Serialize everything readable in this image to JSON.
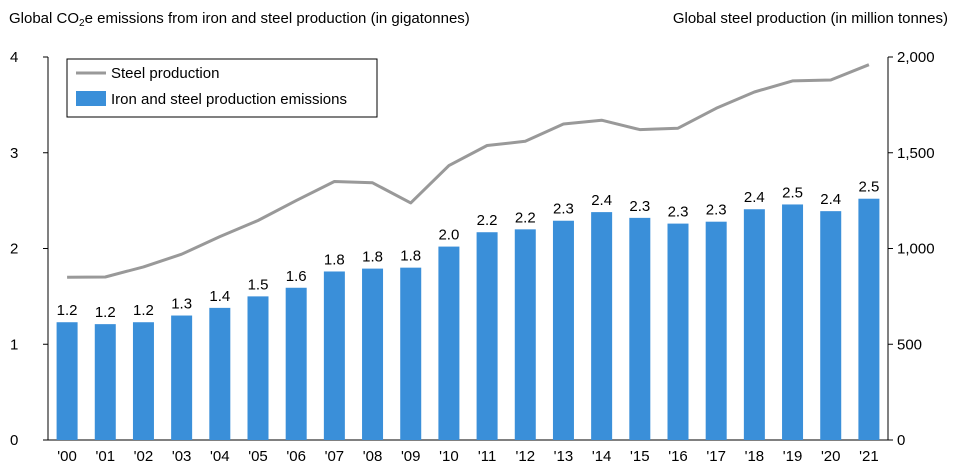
{
  "chart_data": {
    "type": "bar+line",
    "left_axis_title": {
      "pre": "Global CO",
      "sub": "2",
      "post": "e emissions from iron and steel production (in gigatonnes)"
    },
    "right_axis_title": "Global steel production (in million tonnes)",
    "categories": [
      "'00",
      "'01",
      "'02",
      "'03",
      "'04",
      "'05",
      "'06",
      "'07",
      "'08",
      "'09",
      "'10",
      "'11",
      "'12",
      "'13",
      "'14",
      "'15",
      "'16",
      "'17",
      "'18",
      "'19",
      "'20",
      "'21"
    ],
    "series": [
      {
        "name": "Iron and steel production emissions",
        "type": "bar",
        "axis": "left",
        "color": "#3a8fd9",
        "values": [
          1.23,
          1.21,
          1.23,
          1.3,
          1.38,
          1.5,
          1.59,
          1.76,
          1.79,
          1.8,
          2.02,
          2.17,
          2.2,
          2.29,
          2.38,
          2.32,
          2.26,
          2.28,
          2.41,
          2.46,
          2.39,
          2.52
        ],
        "labels": [
          "1.2",
          "1.2",
          "1.2",
          "1.3",
          "1.4",
          "1.5",
          "1.6",
          "1.8",
          "1.8",
          "1.8",
          "2.0",
          "2.2",
          "2.2",
          "2.3",
          "2.4",
          "2.3",
          "2.3",
          "2.3",
          "2.4",
          "2.5",
          "2.4",
          "2.5"
        ]
      },
      {
        "name": "Steel production",
        "type": "line",
        "axis": "right",
        "color": "#999999",
        "values": [
          850,
          851,
          904,
          970,
          1062,
          1146,
          1250,
          1350,
          1343,
          1238,
          1433,
          1538,
          1560,
          1650,
          1670,
          1621,
          1628,
          1732,
          1817,
          1875,
          1880,
          1960
        ]
      }
    ],
    "left_axis": {
      "min": 0,
      "max": 4,
      "ticks": [
        0,
        1,
        2,
        3,
        4
      ],
      "tick_labels": [
        "0",
        "1",
        "2",
        "3",
        "4"
      ]
    },
    "right_axis": {
      "min": 0,
      "max": 2000,
      "ticks": [
        0,
        500,
        1000,
        1500,
        2000
      ],
      "tick_labels": [
        "0",
        "500",
        "1,000",
        "1,500",
        "2,000"
      ]
    },
    "legend": {
      "placement": "top-left",
      "entries": [
        "Steel production",
        "Iron and steel production emissions"
      ]
    },
    "grid": false
  }
}
